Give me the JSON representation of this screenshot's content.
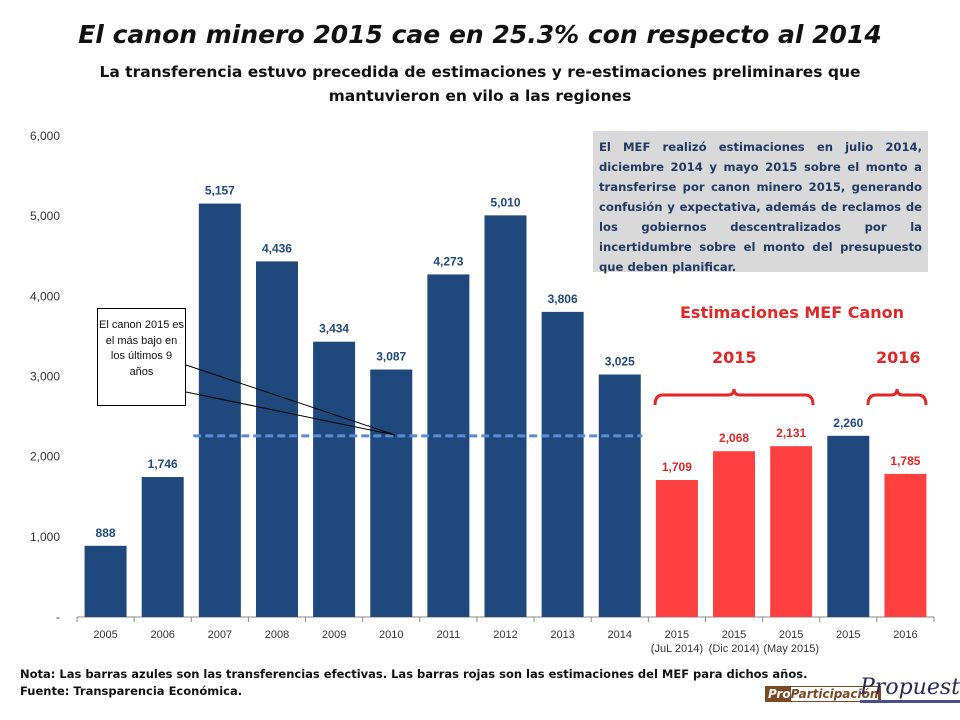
{
  "title": "El canon minero 2015 cae en 25.3% con respecto al 2014",
  "subtitle": "La transferencia estuvo precedida de estimaciones y re-estimaciones preliminares que mantuvieron en vilo a las regiones",
  "info_box": "El MEF realizó estimaciones en julio 2014, diciembre 2014 y mayo 2015 sobre el monto a transferirse por canon minero 2015, generando confusión y expectativa, además de reclamos de los gobiernos descentralizados por la incertidumbre sobre el monto del presupuesto que deben planificar.",
  "callout": "El canon 2015 es el más bajo en los últimos 9 años",
  "estimates_heading": "Estimaciones MEF Canon",
  "group_labels": [
    "2015",
    "2016"
  ],
  "notes": {
    "line1": "Nota: Las barras azules son las transferencias efectivas. Las barras rojas son las estimaciones del MEF para dichos años.",
    "line2": "Fuente: Transparencia Económica."
  },
  "logos": {
    "left": "ProParticipación",
    "right": "Propuesta"
  },
  "colors": {
    "actual": "#1f497d",
    "estimate": "#ff4040",
    "dashed_line": "#5b8bd0",
    "annotation": "#e32626"
  },
  "chart_data": {
    "type": "bar",
    "categories": [
      "2005",
      "2006",
      "2007",
      "2008",
      "2009",
      "2010",
      "2011",
      "2012",
      "2013",
      "2014",
      "2015\n(JuL 2014)",
      "2015\n(Dic 2014)",
      "2015\n(May 2015)",
      "2015",
      "2016"
    ],
    "values": [
      888,
      1746,
      5157,
      4436,
      3434,
      3087,
      4273,
      5010,
      3806,
      3025,
      1709,
      2068,
      2131,
      2260,
      1785
    ],
    "data_labels": [
      "888",
      "1,746",
      "5,157",
      "4,436",
      "3,434",
      "3,087",
      "4,273",
      "5,010",
      "3,806",
      "3,025",
      "1,709",
      "2,068",
      "2,131",
      "2,260",
      "1,785"
    ],
    "bar_kind": [
      "actual",
      "actual",
      "actual",
      "actual",
      "actual",
      "actual",
      "actual",
      "actual",
      "actual",
      "actual",
      "estimate",
      "estimate",
      "estimate",
      "actual",
      "estimate"
    ],
    "ylim": [
      0,
      6000
    ],
    "yticks": [
      0,
      1000,
      2000,
      3000,
      4000,
      5000,
      6000
    ],
    "ytick_labels": [
      "-",
      "1,000",
      "2,000",
      "3,000",
      "4,000",
      "5,000",
      "6,000"
    ],
    "reference_line": {
      "value": 2260,
      "from": "2007",
      "to": "2014",
      "style": "dashed"
    },
    "grid": false,
    "xlabel": "",
    "ylabel": ""
  }
}
